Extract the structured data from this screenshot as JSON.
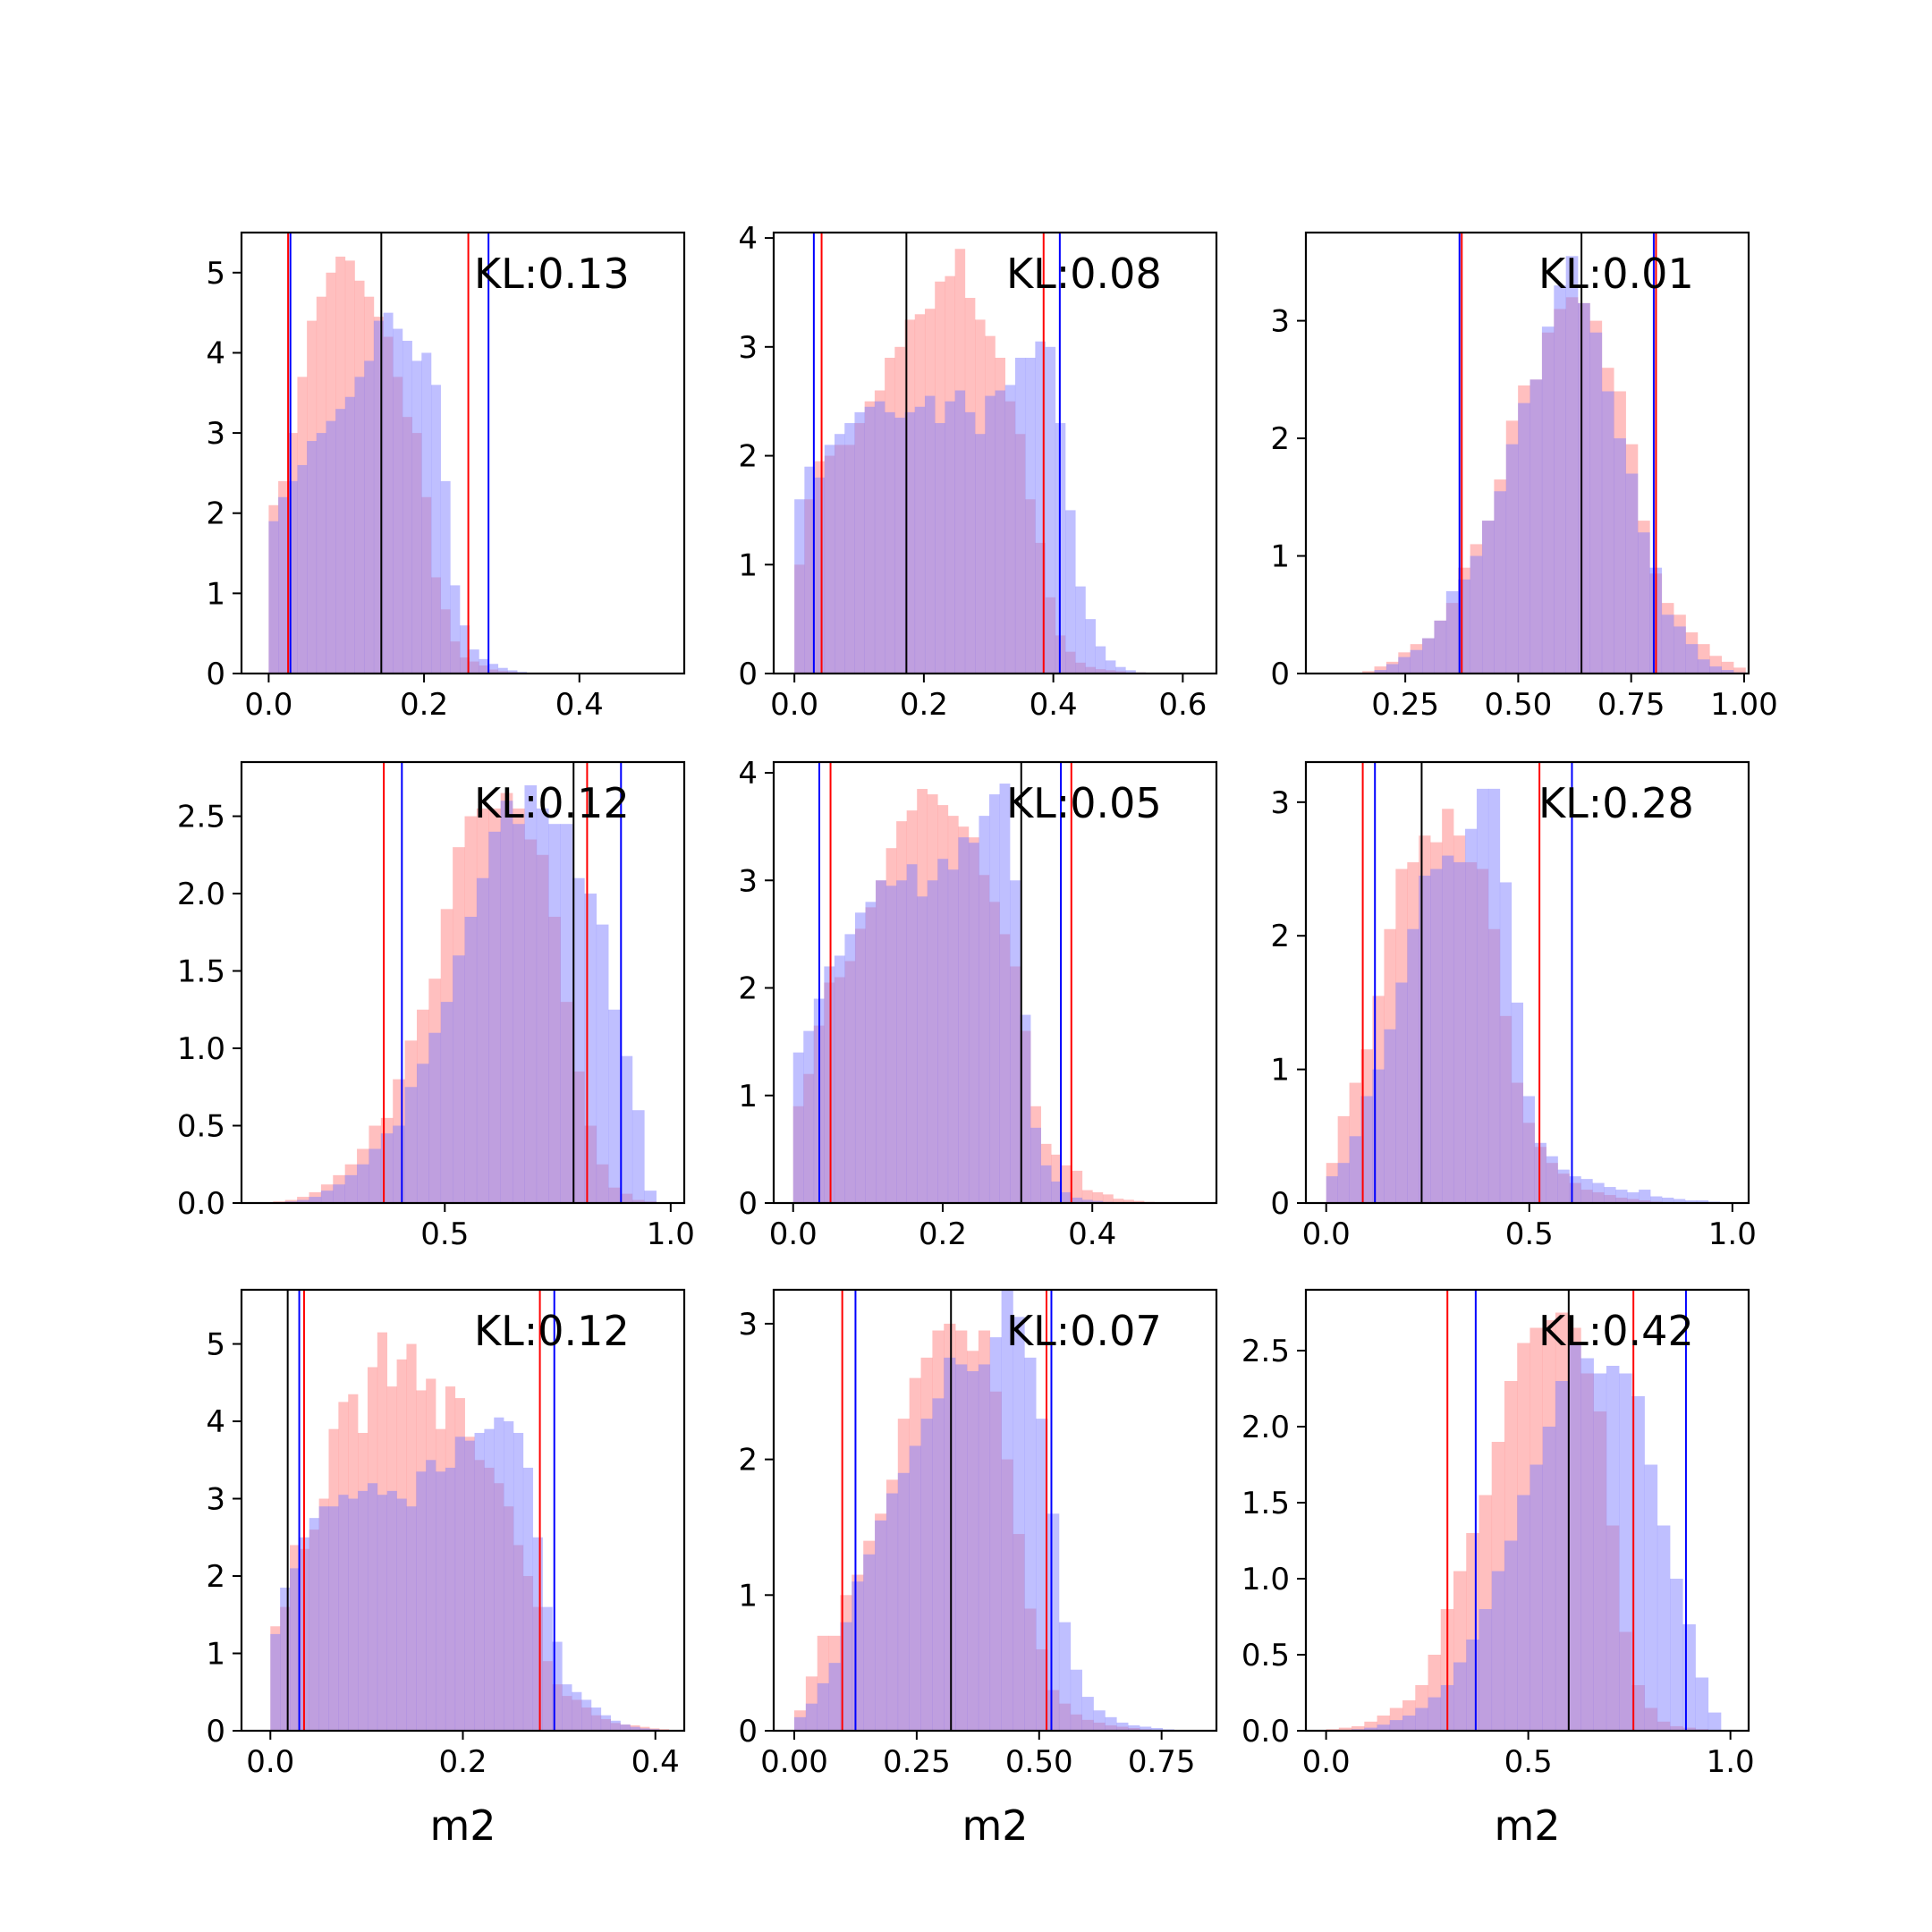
{
  "chart_data": [
    {
      "type": "bar",
      "kl_label": "KL:0.13",
      "xlim": [
        -0.035,
        0.535
      ],
      "ylim": [
        0,
        5.5
      ],
      "xticks": [
        "0.0",
        "0.2",
        "0.4"
      ],
      "xtick_values": [
        0,
        0.2,
        0.4
      ],
      "yticks": [
        "0",
        "1",
        "2",
        "3",
        "4",
        "5"
      ],
      "ytick_values": [
        0,
        1,
        2,
        3,
        4,
        5
      ],
      "xlabel": "",
      "bins": {
        "x0": 0.0,
        "width": 0.0123
      },
      "series": [
        {
          "name": "red",
          "values": [
            2.1,
            2.4,
            3.0,
            3.7,
            4.4,
            4.7,
            5.0,
            5.2,
            5.15,
            4.9,
            4.7,
            4.45,
            4.2,
            3.7,
            3.2,
            3.0,
            2.2,
            1.2,
            0.8,
            0.4,
            0.2,
            0.15,
            0.1,
            0.05,
            0.03,
            0.02,
            0.01,
            0.0
          ]
        },
        {
          "name": "blue",
          "values": [
            1.9,
            2.2,
            2.4,
            2.6,
            2.9,
            3.0,
            3.15,
            3.3,
            3.45,
            3.7,
            3.9,
            4.4,
            4.5,
            4.3,
            4.15,
            3.9,
            4.0,
            3.6,
            2.4,
            1.1,
            0.6,
            0.3,
            0.18,
            0.12,
            0.07,
            0.04,
            0.02,
            0.01
          ]
        }
      ],
      "vlines": {
        "red": [
          0.025,
          0.257
        ],
        "blue": [
          0.028,
          0.283
        ],
        "black": [
          0.145
        ]
      }
    },
    {
      "type": "bar",
      "kl_label": "KL:0.08",
      "xlim": [
        -0.032,
        0.652
      ],
      "ylim": [
        0,
        4.05
      ],
      "xticks": [
        "0.0",
        "0.2",
        "0.4",
        "0.6"
      ],
      "xtick_values": [
        0,
        0.2,
        0.4,
        0.6
      ],
      "yticks": [
        "0",
        "1",
        "2",
        "3",
        "4"
      ],
      "ytick_values": [
        0,
        1,
        2,
        3,
        4
      ],
      "xlabel": "",
      "bins": {
        "x0": 0.0,
        "width": 0.0155
      },
      "series": [
        {
          "name": "red",
          "values": [
            1.0,
            1.6,
            1.95,
            2.0,
            2.1,
            2.1,
            2.3,
            2.5,
            2.6,
            2.9,
            3.0,
            3.25,
            3.3,
            3.35,
            3.6,
            3.65,
            3.9,
            3.45,
            3.25,
            3.1,
            2.9,
            2.5,
            2.2,
            1.6,
            1.2,
            0.7,
            0.35,
            0.2,
            0.1,
            0.06,
            0.04,
            0.03,
            0.02,
            0.01,
            0.01
          ]
        },
        {
          "name": "blue",
          "values": [
            1.6,
            1.9,
            1.8,
            2.1,
            2.2,
            2.3,
            2.4,
            2.45,
            2.5,
            2.4,
            2.35,
            2.4,
            2.45,
            2.55,
            2.3,
            2.5,
            2.6,
            2.4,
            2.2,
            2.55,
            2.6,
            2.65,
            2.9,
            2.9,
            3.05,
            3.0,
            2.3,
            1.5,
            0.8,
            0.5,
            0.25,
            0.12,
            0.06,
            0.03,
            0.01
          ]
        }
      ],
      "vlines": {
        "red": [
          0.042,
          0.385
        ],
        "blue": [
          0.03,
          0.41
        ],
        "black": [
          0.173
        ]
      }
    },
    {
      "type": "bar",
      "kl_label": "KL:0.01",
      "xlim": [
        0.03,
        1.01
      ],
      "ylim": [
        0,
        3.75
      ],
      "xticks": [
        "0.25",
        "0.50",
        "0.75",
        "1.00"
      ],
      "xtick_values": [
        0.25,
        0.5,
        0.75,
        1.0
      ],
      "yticks": [
        "0",
        "1",
        "2",
        "3"
      ],
      "ytick_values": [
        0,
        1,
        2,
        3
      ],
      "xlabel": "",
      "bins": {
        "x0": 0.155,
        "width": 0.0265
      },
      "series": [
        {
          "name": "red",
          "values": [
            0.02,
            0.06,
            0.1,
            0.18,
            0.25,
            0.3,
            0.45,
            0.6,
            0.9,
            1.1,
            1.3,
            1.65,
            2.15,
            2.45,
            2.5,
            2.9,
            3.1,
            3.2,
            3.15,
            3.0,
            2.6,
            2.4,
            1.95,
            1.3,
            0.85,
            0.6,
            0.5,
            0.35,
            0.25,
            0.15,
            0.1,
            0.05
          ]
        },
        {
          "name": "blue",
          "values": [
            0.0,
            0.03,
            0.08,
            0.14,
            0.2,
            0.3,
            0.45,
            0.7,
            0.8,
            1.0,
            1.3,
            1.55,
            1.95,
            2.3,
            2.5,
            2.95,
            3.3,
            3.55,
            3.15,
            2.9,
            2.4,
            2.0,
            1.7,
            1.2,
            0.9,
            0.5,
            0.4,
            0.25,
            0.12,
            0.06,
            0.03,
            0.01
          ]
        }
      ],
      "vlines": {
        "red": [
          0.375,
          0.805
        ],
        "blue": [
          0.37,
          0.8
        ],
        "black": [
          0.64
        ]
      }
    },
    {
      "type": "bar",
      "kl_label": "KL:0.12",
      "xlim": [
        0.05,
        1.03
      ],
      "ylim": [
        0,
        2.85
      ],
      "xticks": [
        "0.5",
        "1.0"
      ],
      "xtick_values": [
        0.5,
        1.0
      ],
      "yticks": [
        "0.0",
        "0.5",
        "1.0",
        "1.5",
        "2.0",
        "2.5"
      ],
      "ytick_values": [
        0,
        0.5,
        1,
        1.5,
        2,
        2.5
      ],
      "xlabel": "",
      "bins": {
        "x0": 0.12,
        "width": 0.0265
      },
      "series": [
        {
          "name": "red",
          "values": [
            0.01,
            0.02,
            0.04,
            0.07,
            0.12,
            0.18,
            0.25,
            0.35,
            0.5,
            0.55,
            0.8,
            1.05,
            1.25,
            1.45,
            1.9,
            2.3,
            2.5,
            2.55,
            2.55,
            2.65,
            2.55,
            2.35,
            2.25,
            1.85,
            1.3,
            0.85,
            0.5,
            0.25,
            0.1,
            0.06,
            0.02,
            0.01
          ]
        },
        {
          "name": "blue",
          "values": [
            0.0,
            0.01,
            0.02,
            0.04,
            0.08,
            0.12,
            0.18,
            0.25,
            0.35,
            0.45,
            0.5,
            0.75,
            0.9,
            1.1,
            1.3,
            1.6,
            1.85,
            2.1,
            2.4,
            2.6,
            2.45,
            2.7,
            2.55,
            2.45,
            2.45,
            2.1,
            2.0,
            1.8,
            1.25,
            0.95,
            0.6,
            0.08
          ]
        }
      ],
      "vlines": {
        "red": [
          0.365,
          0.815
        ],
        "blue": [
          0.405,
          0.89
        ],
        "black": [
          0.785
        ]
      }
    },
    {
      "type": "bar",
      "kl_label": "KL:0.05",
      "xlim": [
        -0.026,
        0.566
      ],
      "ylim": [
        0,
        4.1
      ],
      "xticks": [
        "0.0",
        "0.2",
        "0.4"
      ],
      "xtick_values": [
        0,
        0.2,
        0.4
      ],
      "yticks": [
        "0",
        "1",
        "2",
        "3",
        "4"
      ],
      "ytick_values": [
        0,
        1,
        2,
        3,
        4
      ],
      "xlabel": "",
      "bins": {
        "x0": 0.0,
        "width": 0.0138
      },
      "series": [
        {
          "name": "red",
          "values": [
            0.9,
            1.2,
            1.65,
            2.05,
            2.1,
            2.25,
            2.55,
            2.75,
            3.0,
            3.3,
            3.55,
            3.65,
            3.85,
            3.8,
            3.7,
            3.6,
            3.5,
            3.4,
            3.05,
            2.8,
            2.5,
            2.2,
            1.6,
            0.9,
            0.55,
            0.45,
            0.35,
            0.3,
            0.12,
            0.1,
            0.08,
            0.04,
            0.03,
            0.02,
            0.01,
            0.0,
            0.0,
            0.0,
            0.0
          ]
        },
        {
          "name": "blue",
          "values": [
            1.4,
            1.6,
            1.9,
            2.2,
            2.3,
            2.5,
            2.7,
            2.8,
            3.0,
            2.95,
            3.0,
            3.15,
            2.85,
            3.0,
            3.2,
            3.1,
            3.4,
            3.35,
            3.6,
            3.8,
            3.9,
            3.0,
            1.75,
            0.7,
            0.35,
            0.2,
            0.1,
            0.05,
            0.03,
            0.02,
            0.01,
            0.0,
            0.0,
            0.0,
            0.0,
            0.0,
            0.0,
            0.0,
            0.0
          ]
        }
      ],
      "vlines": {
        "red": [
          0.05,
          0.372
        ],
        "blue": [
          0.035,
          0.358
        ],
        "black": [
          0.305
        ]
      }
    },
    {
      "type": "bar",
      "kl_label": "KL:0.28",
      "xlim": [
        -0.05,
        1.04
      ],
      "ylim": [
        0,
        3.3
      ],
      "xticks": [
        "0.0",
        "0.5",
        "1.0"
      ],
      "xtick_values": [
        0,
        0.5,
        1.0
      ],
      "yticks": [
        "0",
        "1",
        "2",
        "3"
      ],
      "ytick_values": [
        0,
        1,
        2,
        3
      ],
      "xlabel": "",
      "bins": {
        "x0": 0.0,
        "width": 0.0285
      },
      "series": [
        {
          "name": "red",
          "values": [
            0.3,
            0.65,
            0.9,
            1.15,
            1.55,
            2.05,
            2.5,
            2.55,
            2.75,
            2.7,
            2.95,
            2.75,
            2.55,
            2.5,
            2.05,
            1.4,
            0.9,
            0.6,
            0.42,
            0.3,
            0.22,
            0.15,
            0.1,
            0.08,
            0.06,
            0.04,
            0.03,
            0.02,
            0.01,
            0.0,
            0.0,
            0.0,
            0.0,
            0.0,
            0.0
          ]
        },
        {
          "name": "blue",
          "values": [
            0.2,
            0.3,
            0.5,
            0.8,
            1.0,
            1.3,
            1.65,
            2.05,
            2.45,
            2.5,
            2.6,
            2.55,
            2.8,
            3.1,
            3.1,
            2.4,
            1.5,
            0.8,
            0.45,
            0.35,
            0.25,
            0.2,
            0.18,
            0.15,
            0.12,
            0.1,
            0.08,
            0.1,
            0.05,
            0.04,
            0.03,
            0.02,
            0.02,
            0.01,
            0.0
          ]
        }
      ],
      "vlines": {
        "red": [
          0.09,
          0.525
        ],
        "blue": [
          0.12,
          0.605
        ],
        "black": [
          0.235
        ]
      }
    },
    {
      "type": "bar",
      "kl_label": "KL:0.12",
      "xlim": [
        -0.03,
        0.43
      ],
      "ylim": [
        0,
        5.7
      ],
      "xticks": [
        "0.0",
        "0.2",
        "0.4"
      ],
      "xtick_values": [
        0,
        0.2,
        0.4
      ],
      "yticks": [
        "0",
        "1",
        "2",
        "3",
        "4",
        "5"
      ],
      "ytick_values": [
        0,
        1,
        2,
        3,
        4,
        5
      ],
      "xlabel": "m2",
      "bins": {
        "x0": 0.0,
        "width": 0.0101
      },
      "series": [
        {
          "name": "red",
          "values": [
            1.35,
            1.6,
            2.4,
            2.35,
            2.6,
            3.0,
            3.9,
            4.25,
            4.35,
            3.85,
            4.7,
            5.15,
            4.45,
            4.8,
            5.0,
            4.4,
            4.55,
            3.9,
            4.45,
            4.3,
            3.8,
            3.5,
            3.4,
            3.2,
            2.9,
            2.4,
            2.0,
            1.6,
            0.9,
            0.6,
            0.45,
            0.4,
            0.3,
            0.2,
            0.15,
            0.1,
            0.08,
            0.07,
            0.05,
            0.03,
            0.02
          ]
        },
        {
          "name": "blue",
          "values": [
            1.25,
            1.85,
            2.1,
            2.5,
            2.75,
            2.9,
            2.9,
            3.05,
            3.0,
            3.1,
            3.2,
            3.05,
            3.1,
            3.0,
            2.9,
            3.35,
            3.5,
            3.35,
            3.4,
            3.8,
            3.75,
            3.85,
            3.9,
            4.05,
            4.0,
            3.85,
            3.4,
            2.5,
            1.6,
            1.15,
            0.6,
            0.5,
            0.4,
            0.3,
            0.2,
            0.13,
            0.08,
            0.05,
            0.03,
            0.02,
            0.01
          ]
        }
      ],
      "vlines": {
        "red": [
          0.035,
          0.28
        ],
        "blue": [
          0.03,
          0.295
        ],
        "black": [
          0.018
        ]
      }
    },
    {
      "type": "bar",
      "kl_label": "KL:0.07",
      "xlim": [
        -0.042,
        0.862
      ],
      "ylim": [
        0,
        3.25
      ],
      "xticks": [
        "0.00",
        "0.25",
        "0.50",
        "0.75"
      ],
      "xtick_values": [
        0,
        0.25,
        0.5,
        0.75
      ],
      "yticks": [
        "0",
        "1",
        "2",
        "3"
      ],
      "ytick_values": [
        0,
        1,
        2,
        3
      ],
      "xlabel": "m2",
      "bins": {
        "x0": 0.0,
        "width": 0.0235
      },
      "series": [
        {
          "name": "red",
          "values": [
            0.15,
            0.4,
            0.7,
            0.7,
            1.0,
            1.15,
            1.4,
            1.6,
            1.85,
            2.3,
            2.6,
            2.75,
            2.95,
            3.0,
            2.95,
            2.8,
            2.95,
            2.5,
            2.0,
            1.45,
            0.9,
            0.6,
            0.3,
            0.2,
            0.12,
            0.08,
            0.06,
            0.04,
            0.03,
            0.02,
            0.01,
            0.0,
            0.0,
            0.0,
            0.0
          ]
        },
        {
          "name": "blue",
          "values": [
            0.1,
            0.2,
            0.35,
            0.5,
            0.8,
            1.1,
            1.3,
            1.55,
            1.75,
            1.9,
            2.1,
            2.3,
            2.45,
            2.75,
            2.7,
            2.65,
            2.7,
            2.9,
            3.25,
            3.05,
            2.75,
            2.3,
            1.6,
            0.8,
            0.45,
            0.25,
            0.15,
            0.1,
            0.06,
            0.04,
            0.03,
            0.02,
            0.01,
            0.0,
            0.0
          ]
        }
      ],
      "vlines": {
        "red": [
          0.098,
          0.515
        ],
        "blue": [
          0.125,
          0.525
        ],
        "black": [
          0.32
        ]
      }
    },
    {
      "type": "bar",
      "kl_label": "KL:0.42",
      "xlim": [
        -0.05,
        1.045
      ],
      "ylim": [
        0,
        2.9
      ],
      "xticks": [
        "0.0",
        "0.5",
        "1.0"
      ],
      "xtick_values": [
        0,
        0.5,
        1.0
      ],
      "yticks": [
        "0.0",
        "0.5",
        "1.0",
        "1.5",
        "2.0",
        "2.5"
      ],
      "ytick_values": [
        0,
        0.5,
        1,
        1.5,
        2,
        2.5
      ],
      "xlabel": "m2",
      "bins": {
        "x0": 0.0,
        "width": 0.0315
      },
      "series": [
        {
          "name": "red",
          "values": [
            0.01,
            0.02,
            0.03,
            0.06,
            0.1,
            0.15,
            0.2,
            0.3,
            0.5,
            0.8,
            1.05,
            1.3,
            1.55,
            1.9,
            2.3,
            2.55,
            2.65,
            2.7,
            2.75,
            2.65,
            2.35,
            2.1,
            1.35,
            0.65,
            0.3,
            0.15,
            0.06,
            0.03,
            0.02,
            0.01,
            0.0,
            0.0
          ]
        },
        {
          "name": "blue",
          "values": [
            0.0,
            0.0,
            0.01,
            0.02,
            0.04,
            0.07,
            0.1,
            0.15,
            0.22,
            0.3,
            0.45,
            0.6,
            0.8,
            1.05,
            1.25,
            1.55,
            1.75,
            2.0,
            2.3,
            2.55,
            2.45,
            2.35,
            2.4,
            2.35,
            2.2,
            1.75,
            1.35,
            1.0,
            0.7,
            0.35,
            0.12,
            0.0
          ]
        }
      ],
      "vlines": {
        "red": [
          0.3,
          0.76
        ],
        "blue": [
          0.37,
          0.89
        ],
        "black": [
          0.6
        ]
      }
    }
  ],
  "colors": {
    "red_fill": "#ff8080",
    "blue_fill": "#8080ff",
    "red_line": "#ff0000",
    "blue_line": "#0000ff",
    "black_line": "#000000"
  }
}
